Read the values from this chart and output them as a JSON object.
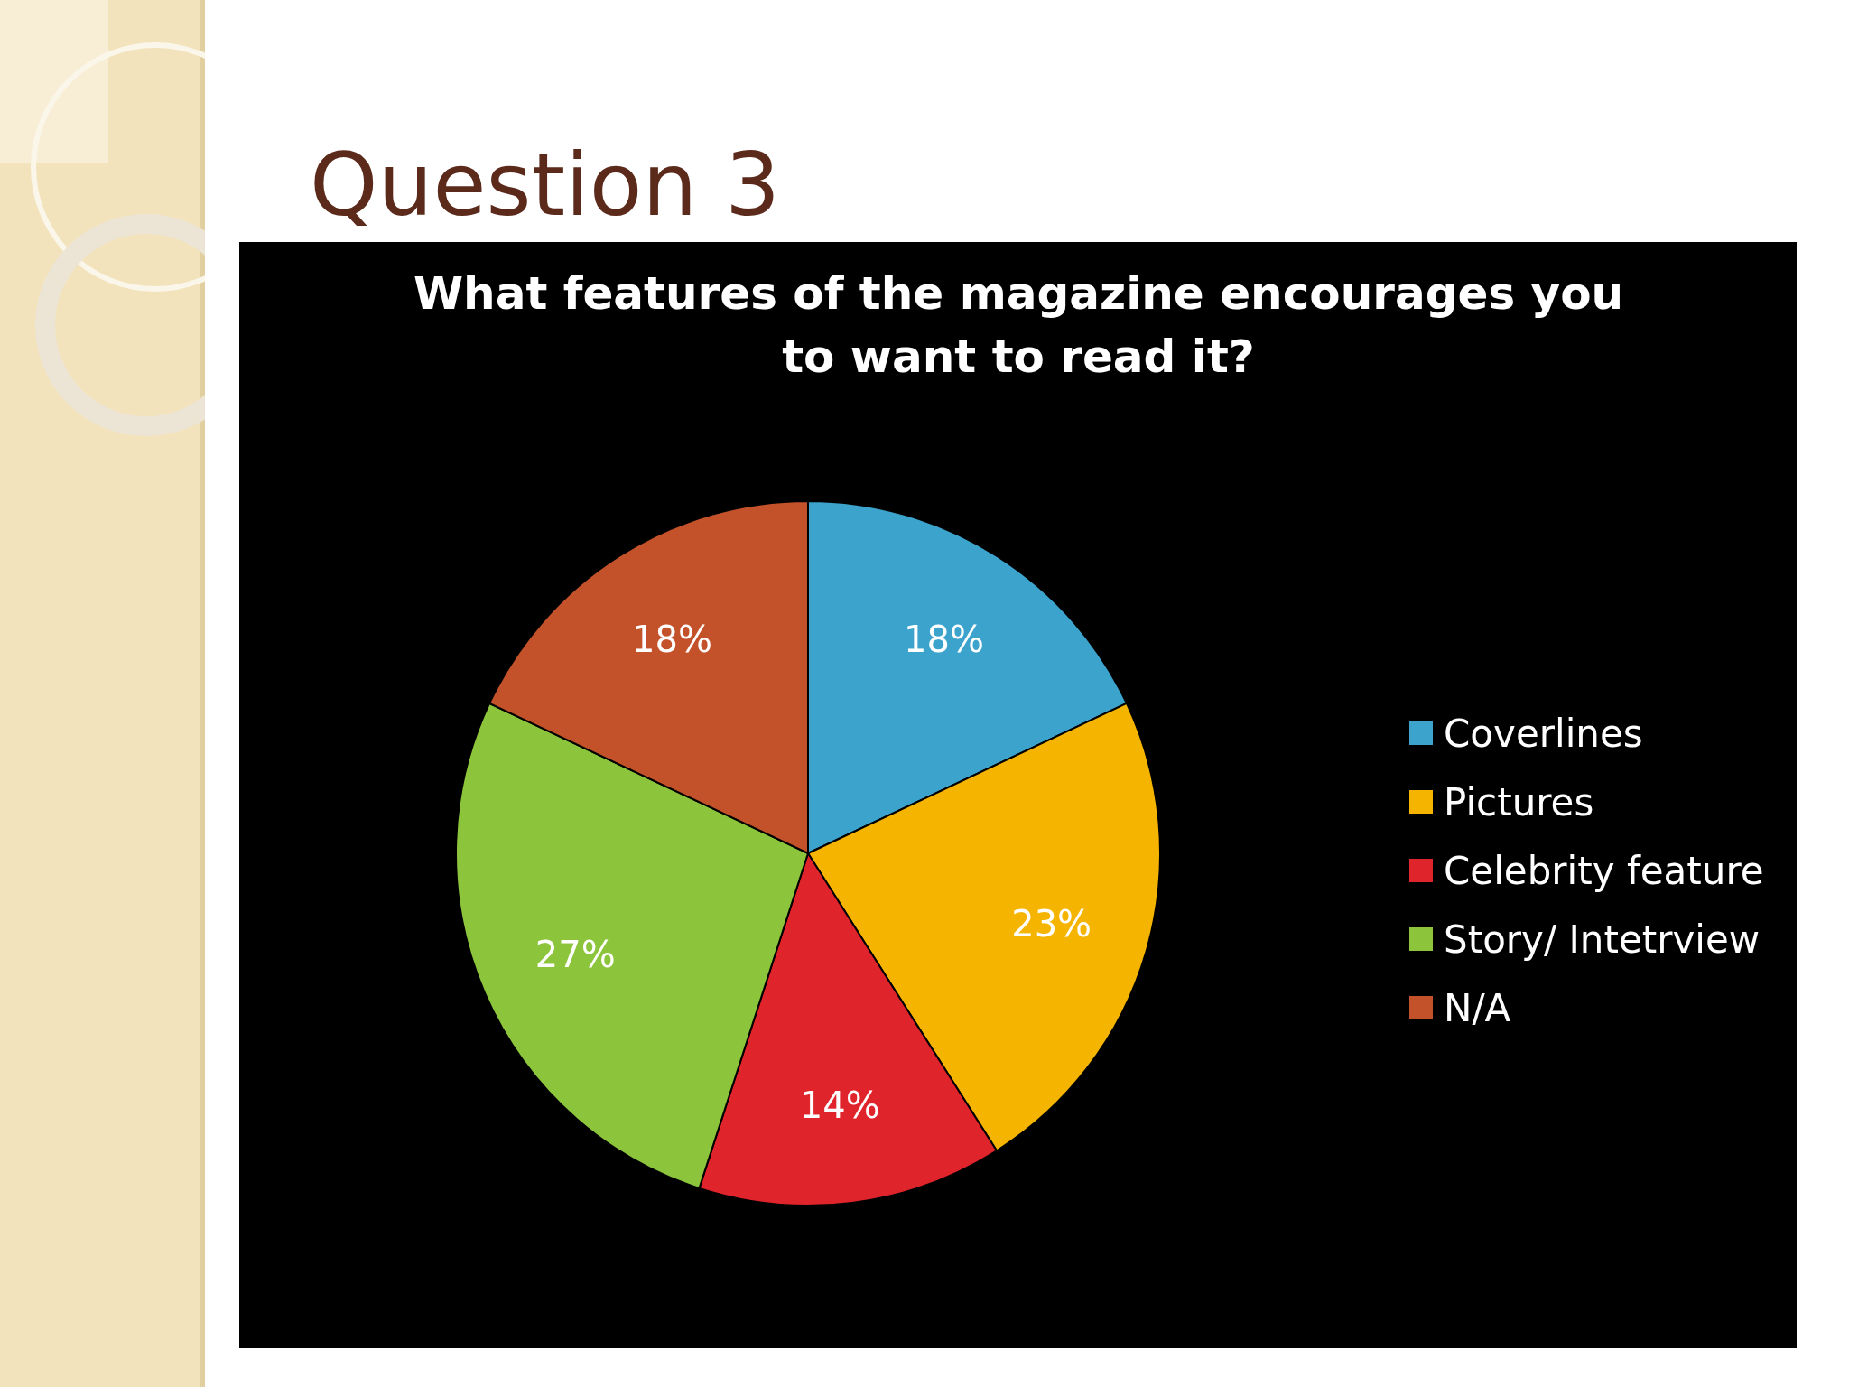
{
  "chart_data": {
    "type": "pie",
    "title": "Question 3",
    "subtitle": "What features of the magazine encourages you to want to read it?",
    "categories": [
      "Coverlines",
      "Pictures",
      "Celebrity feature",
      "Story/ Intetrview",
      "N/A"
    ],
    "values": [
      18,
      23,
      14,
      27,
      18
    ],
    "colors": [
      "#3ba3cc",
      "#f5b400",
      "#e0242b",
      "#8cc43c",
      "#c3522a"
    ],
    "value_labels": [
      "18%",
      "23%",
      "14%",
      "27%",
      "18%"
    ],
    "legend": "right"
  }
}
